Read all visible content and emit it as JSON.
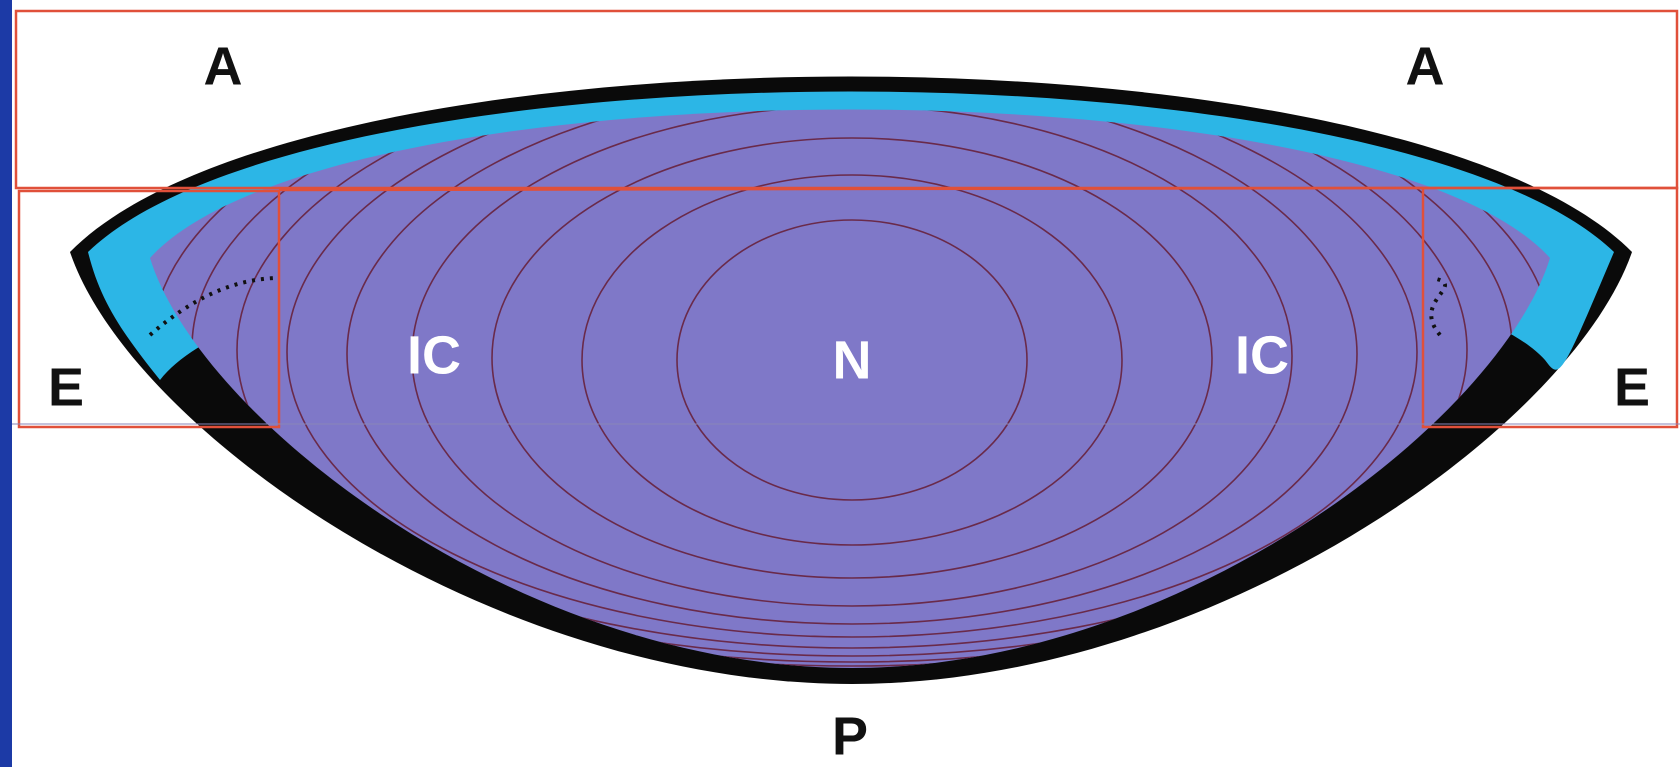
{
  "labels": [
    "A",
    "A",
    "E",
    "E",
    "IC",
    "N",
    "IC",
    "P"
  ]
}
